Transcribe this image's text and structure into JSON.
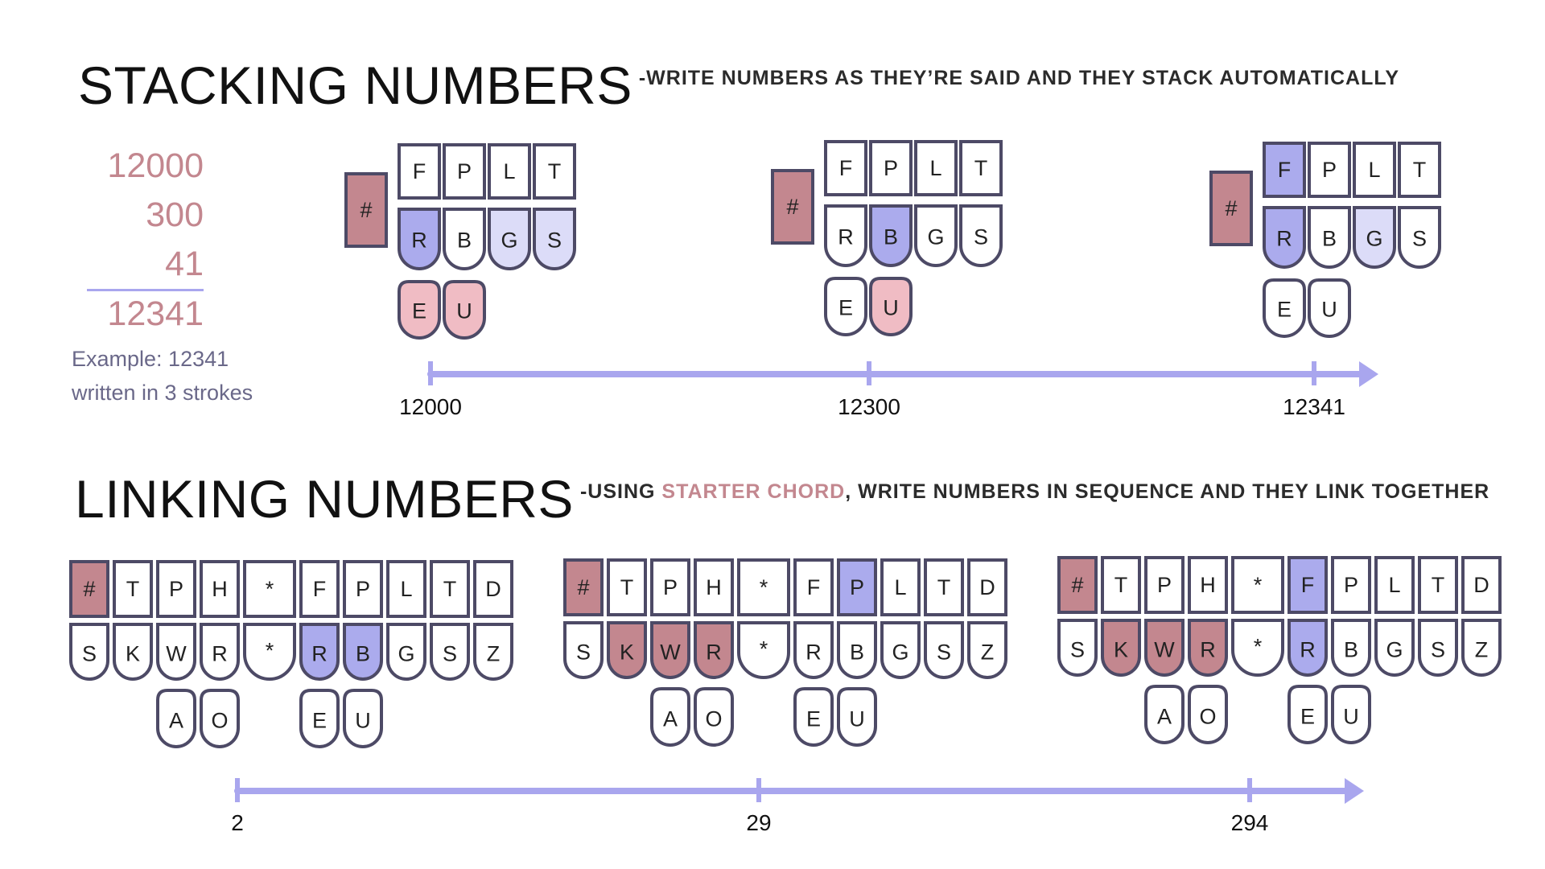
{
  "colors": {
    "outline": "#4d4a66",
    "blank": "#ffffff",
    "number_key": "#c3878f",
    "primary": "#ababed",
    "light": "#dcdcf8",
    "vowel": "#f0bcc4",
    "axis": "#a9a6ee"
  },
  "stacking": {
    "title": "STACKING NUMBERS",
    "subtitle": "-WRITE NUMBERS AS THEY’RE SAID AND THEY STACK AUTOMATICALLY",
    "sum_lines": [
      "12000",
      "300",
      "41"
    ],
    "sum_total": "12341",
    "caption_line1": "Example: 12341",
    "caption_line2": "written in 3 strokes",
    "strokes": [
      {
        "number_key": {
          "label": "#",
          "state": "number_key"
        },
        "top": [
          {
            "label": "F",
            "state": "blank"
          },
          {
            "label": "P",
            "state": "blank"
          },
          {
            "label": "L",
            "state": "blank"
          },
          {
            "label": "T",
            "state": "blank"
          }
        ],
        "bottom": [
          {
            "label": "R",
            "state": "primary"
          },
          {
            "label": "B",
            "state": "blank"
          },
          {
            "label": "G",
            "state": "light"
          },
          {
            "label": "S",
            "state": "light"
          }
        ],
        "vowels": [
          {
            "label": "E",
            "state": "vowel"
          },
          {
            "label": "U",
            "state": "vowel"
          }
        ]
      },
      {
        "number_key": {
          "label": "#",
          "state": "number_key"
        },
        "top": [
          {
            "label": "F",
            "state": "blank"
          },
          {
            "label": "P",
            "state": "blank"
          },
          {
            "label": "L",
            "state": "blank"
          },
          {
            "label": "T",
            "state": "blank"
          }
        ],
        "bottom": [
          {
            "label": "R",
            "state": "blank"
          },
          {
            "label": "B",
            "state": "primary"
          },
          {
            "label": "G",
            "state": "blank"
          },
          {
            "label": "S",
            "state": "blank"
          }
        ],
        "vowels": [
          {
            "label": "E",
            "state": "blank"
          },
          {
            "label": "U",
            "state": "vowel"
          }
        ]
      },
      {
        "number_key": {
          "label": "#",
          "state": "number_key"
        },
        "top": [
          {
            "label": "F",
            "state": "primary"
          },
          {
            "label": "P",
            "state": "blank"
          },
          {
            "label": "L",
            "state": "blank"
          },
          {
            "label": "T",
            "state": "blank"
          }
        ],
        "bottom": [
          {
            "label": "R",
            "state": "primary"
          },
          {
            "label": "B",
            "state": "blank"
          },
          {
            "label": "G",
            "state": "light"
          },
          {
            "label": "S",
            "state": "blank"
          }
        ],
        "vowels": [
          {
            "label": "E",
            "state": "blank"
          },
          {
            "label": "U",
            "state": "blank"
          }
        ]
      }
    ],
    "timeline": [
      "12000",
      "12300",
      "12341"
    ]
  },
  "linking": {
    "title": "LINKING NUMBERS",
    "subtitle_before": "-USING ",
    "subtitle_highlight": "STARTER CHORD",
    "subtitle_after": ", WRITE NUMBERS IN SEQUENCE AND THEY LINK TOGETHER",
    "strokes": [
      {
        "top": [
          {
            "label": "#",
            "state": "number_key"
          },
          {
            "label": "T",
            "state": "blank"
          },
          {
            "label": "P",
            "state": "blank"
          },
          {
            "label": "H",
            "state": "blank"
          },
          {
            "label": "*",
            "state": "blank"
          },
          {
            "label": "F",
            "state": "blank"
          },
          {
            "label": "P",
            "state": "blank"
          },
          {
            "label": "L",
            "state": "blank"
          },
          {
            "label": "T",
            "state": "blank"
          },
          {
            "label": "D",
            "state": "blank"
          }
        ],
        "bottom": [
          {
            "label": "S",
            "state": "blank"
          },
          {
            "label": "K",
            "state": "blank"
          },
          {
            "label": "W",
            "state": "blank"
          },
          {
            "label": "R",
            "state": "blank"
          },
          {
            "label": "*",
            "state": "blank"
          },
          {
            "label": "R",
            "state": "primary"
          },
          {
            "label": "B",
            "state": "primary"
          },
          {
            "label": "G",
            "state": "blank"
          },
          {
            "label": "S",
            "state": "blank"
          },
          {
            "label": "Z",
            "state": "blank"
          }
        ],
        "vowels": [
          {
            "label": "A",
            "state": "blank"
          },
          {
            "label": "O",
            "state": "blank"
          },
          {
            "label": "E",
            "state": "blank"
          },
          {
            "label": "U",
            "state": "blank"
          }
        ]
      },
      {
        "top": [
          {
            "label": "#",
            "state": "number_key"
          },
          {
            "label": "T",
            "state": "blank"
          },
          {
            "label": "P",
            "state": "blank"
          },
          {
            "label": "H",
            "state": "blank"
          },
          {
            "label": "*",
            "state": "blank"
          },
          {
            "label": "F",
            "state": "blank"
          },
          {
            "label": "P",
            "state": "primary"
          },
          {
            "label": "L",
            "state": "blank"
          },
          {
            "label": "T",
            "state": "blank"
          },
          {
            "label": "D",
            "state": "blank"
          }
        ],
        "bottom": [
          {
            "label": "S",
            "state": "blank"
          },
          {
            "label": "K",
            "state": "number_key"
          },
          {
            "label": "W",
            "state": "number_key"
          },
          {
            "label": "R",
            "state": "number_key"
          },
          {
            "label": "*",
            "state": "blank"
          },
          {
            "label": "R",
            "state": "blank"
          },
          {
            "label": "B",
            "state": "blank"
          },
          {
            "label": "G",
            "state": "blank"
          },
          {
            "label": "S",
            "state": "blank"
          },
          {
            "label": "Z",
            "state": "blank"
          }
        ],
        "vowels": [
          {
            "label": "A",
            "state": "blank"
          },
          {
            "label": "O",
            "state": "blank"
          },
          {
            "label": "E",
            "state": "blank"
          },
          {
            "label": "U",
            "state": "blank"
          }
        ]
      },
      {
        "top": [
          {
            "label": "#",
            "state": "number_key"
          },
          {
            "label": "T",
            "state": "blank"
          },
          {
            "label": "P",
            "state": "blank"
          },
          {
            "label": "H",
            "state": "blank"
          },
          {
            "label": "*",
            "state": "blank"
          },
          {
            "label": "F",
            "state": "primary"
          },
          {
            "label": "P",
            "state": "blank"
          },
          {
            "label": "L",
            "state": "blank"
          },
          {
            "label": "T",
            "state": "blank"
          },
          {
            "label": "D",
            "state": "blank"
          }
        ],
        "bottom": [
          {
            "label": "S",
            "state": "blank"
          },
          {
            "label": "K",
            "state": "number_key"
          },
          {
            "label": "W",
            "state": "number_key"
          },
          {
            "label": "R",
            "state": "number_key"
          },
          {
            "label": "*",
            "state": "blank"
          },
          {
            "label": "R",
            "state": "primary"
          },
          {
            "label": "B",
            "state": "blank"
          },
          {
            "label": "G",
            "state": "blank"
          },
          {
            "label": "S",
            "state": "blank"
          },
          {
            "label": "Z",
            "state": "blank"
          }
        ],
        "vowels": [
          {
            "label": "A",
            "state": "blank"
          },
          {
            "label": "O",
            "state": "blank"
          },
          {
            "label": "E",
            "state": "blank"
          },
          {
            "label": "U",
            "state": "blank"
          }
        ]
      }
    ],
    "timeline": [
      "2",
      "29",
      "294"
    ]
  }
}
